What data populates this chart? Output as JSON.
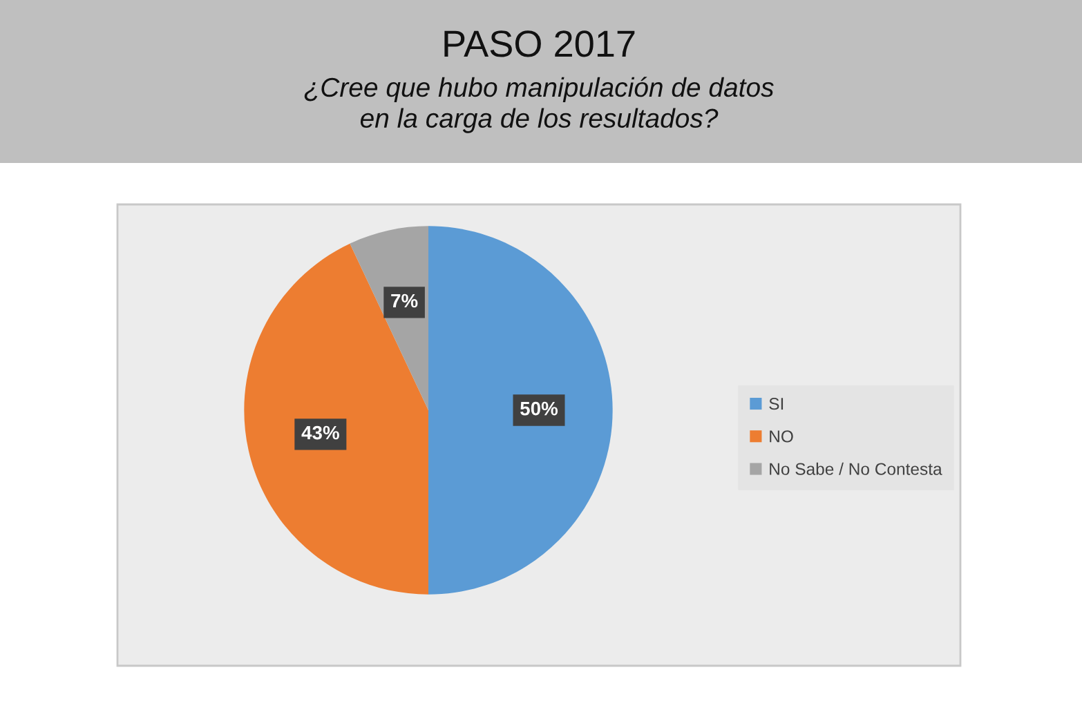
{
  "chart_data": {
    "type": "pie",
    "title": "PASO 2017",
    "subtitle": "¿Cree que hubo manipulación de datos\nen la carga de los resultados?",
    "categories": [
      "SI",
      "NO",
      "No Sabe / No Contesta"
    ],
    "values": [
      50,
      43,
      7
    ],
    "colors": [
      "#5b9bd5",
      "#ed7d31",
      "#a5a5a5"
    ],
    "value_labels": [
      "50%",
      "43%",
      "7%"
    ],
    "legend": "right"
  }
}
